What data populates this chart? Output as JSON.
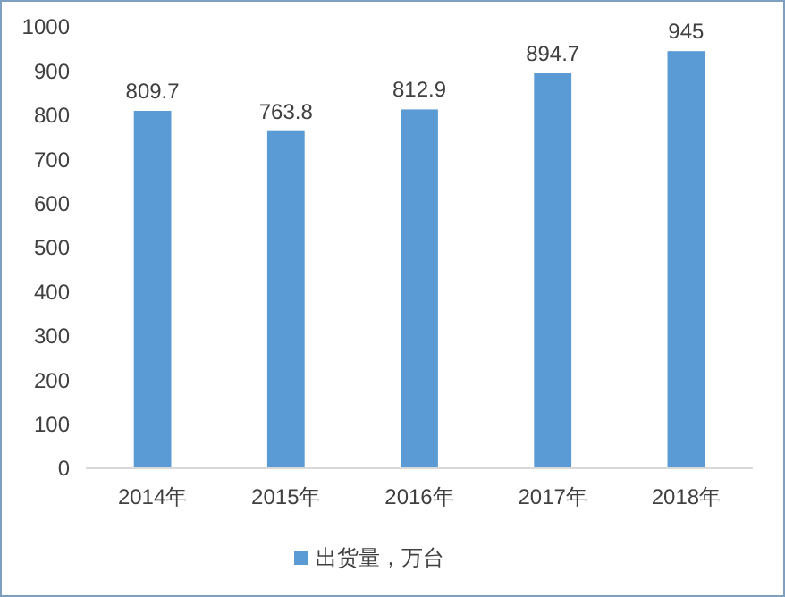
{
  "chart_data": {
    "type": "bar",
    "categories": [
      "2014年",
      "2015年",
      "2016年",
      "2017年",
      "2018年"
    ],
    "series": [
      {
        "name": "出货量，万台",
        "color": "#5b9bd5",
        "values": [
          809.7,
          763.8,
          812.9,
          894.7,
          945
        ]
      }
    ],
    "ylim": [
      0,
      1000
    ],
    "yticks": [
      0,
      100,
      200,
      300,
      400,
      500,
      600,
      700,
      800,
      900,
      1000
    ],
    "grid": false,
    "legend": "bottom",
    "data_labels": true
  }
}
